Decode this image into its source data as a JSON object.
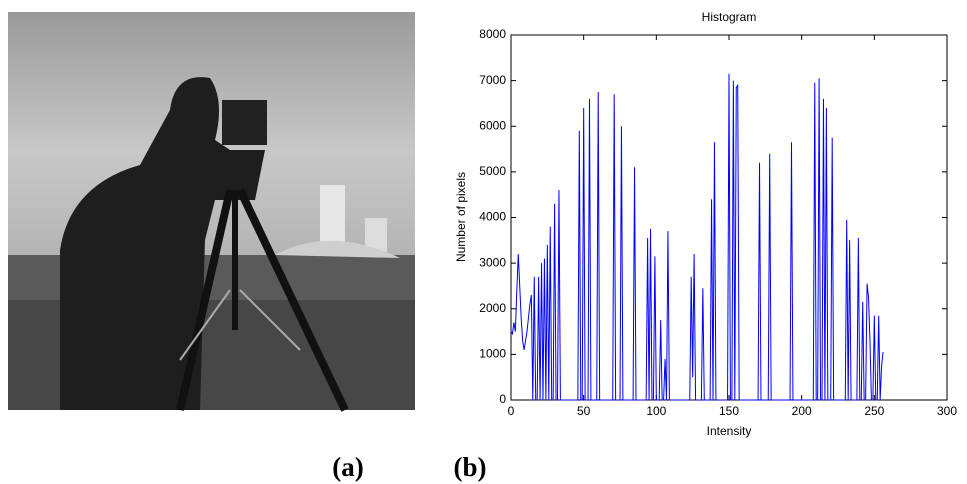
{
  "captions": [
    "(a)",
    "(b)"
  ],
  "chart_data": {
    "type": "line",
    "title": "Histogram",
    "x_label": "Intensity",
    "y_label": "Number of pixels",
    "xlim": [
      0,
      300
    ],
    "xticks": [
      0,
      50,
      100,
      150,
      200,
      250,
      300
    ],
    "ylim": [
      0,
      8000
    ],
    "yticks": [
      0,
      1000,
      2000,
      3000,
      4000,
      5000,
      6000,
      7000,
      8000
    ],
    "x": [
      0,
      1,
      2,
      3,
      4,
      5,
      6,
      7,
      8,
      9,
      10,
      11,
      12,
      13,
      14,
      15,
      16,
      17,
      18,
      19,
      20,
      21,
      22,
      23,
      24,
      25,
      26,
      27,
      28,
      29,
      30,
      31,
      32,
      33,
      34,
      46,
      47,
      48,
      49,
      50,
      51,
      53,
      54,
      55,
      59,
      60,
      61,
      70,
      71,
      72,
      75,
      76,
      77,
      84,
      85,
      86,
      93,
      94,
      95,
      96,
      97,
      98,
      99,
      100,
      102,
      103,
      104,
      105,
      106,
      107,
      108,
      109,
      123,
      124,
      125,
      126,
      127,
      131,
      132,
      133,
      137,
      138,
      139,
      140,
      141,
      149,
      150,
      151,
      152,
      153,
      154,
      155,
      156,
      157,
      170,
      171,
      172,
      177,
      178,
      179,
      192,
      193,
      194,
      208,
      209,
      210,
      211,
      212,
      213,
      214,
      215,
      216,
      217,
      218,
      220,
      221,
      222,
      230,
      231,
      232,
      233,
      234,
      238,
      239,
      240,
      241,
      242,
      243,
      244,
      245,
      246,
      247,
      248,
      249,
      250,
      251,
      252,
      253,
      254,
      255,
      256
    ],
    "series": [
      {
        "color": "#0000ff",
        "values": [
          1500,
          1450,
          1700,
          1500,
          2400,
          3200,
          2500,
          1800,
          1300,
          1100,
          1300,
          1500,
          1800,
          2100,
          2300,
          0,
          2700,
          0,
          0,
          2700,
          0,
          3000,
          0,
          3100,
          0,
          3400,
          0,
          3800,
          0,
          0,
          4300,
          0,
          0,
          4600,
          0,
          0,
          5900,
          0,
          0,
          6400,
          0,
          0,
          6600,
          0,
          0,
          6750,
          0,
          0,
          6700,
          0,
          0,
          6000,
          0,
          0,
          5100,
          0,
          0,
          3550,
          0,
          3750,
          0,
          0,
          3150,
          0,
          0,
          1750,
          0,
          0,
          900,
          0,
          3700,
          0,
          0,
          2700,
          500,
          3200,
          0,
          0,
          2450,
          0,
          0,
          4400,
          0,
          5650,
          0,
          0,
          7150,
          0,
          0,
          7000,
          0,
          6850,
          6900,
          0,
          0,
          5200,
          0,
          0,
          5400,
          0,
          0,
          5650,
          0,
          0,
          6950,
          0,
          0,
          7050,
          0,
          0,
          6600,
          0,
          6400,
          0,
          0,
          5750,
          0,
          0,
          3950,
          0,
          3500,
          0,
          0,
          3550,
          0,
          0,
          2150,
          0,
          0,
          2550,
          2250,
          1300,
          0,
          0,
          1850,
          0,
          0,
          1850,
          0,
          750,
          1050
        ]
      }
    ]
  }
}
